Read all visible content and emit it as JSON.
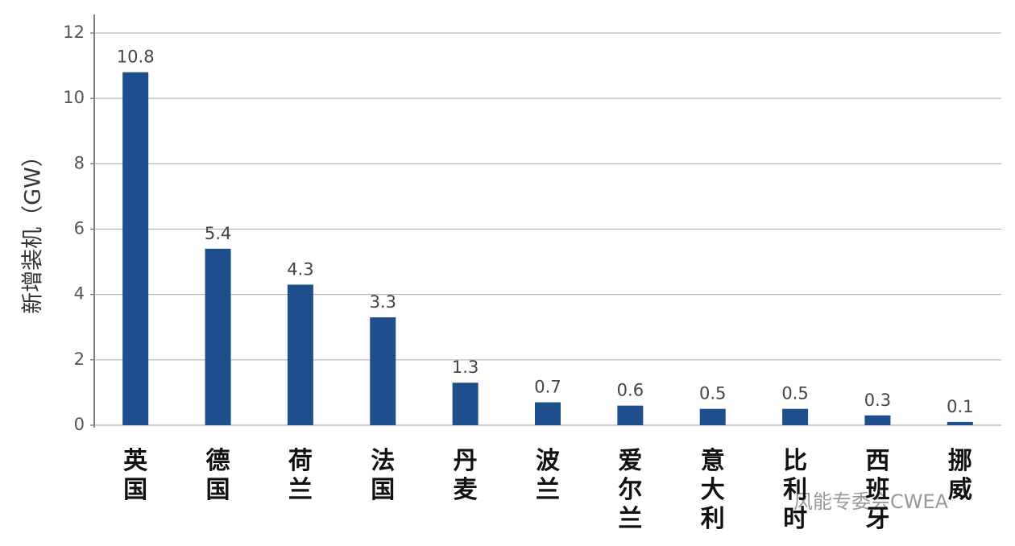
{
  "chart_data": {
    "type": "bar",
    "y_label": "新增装机（GW）",
    "categories": [
      "英国",
      "德国",
      "荷兰",
      "法国",
      "丹麦",
      "波兰",
      "爱尔兰",
      "意大利",
      "比利时",
      "西班牙",
      "挪威"
    ],
    "values": [
      10.8,
      5.4,
      4.3,
      3.3,
      1.3,
      0.7,
      0.6,
      0.5,
      0.5,
      0.3,
      0.1
    ],
    "color": "#1f4e8c",
    "ylim": [
      0,
      12
    ],
    "yticks": [
      0,
      2,
      4,
      6,
      8,
      10,
      12
    ],
    "grid": true,
    "annotation": "风能专委会CWEA"
  }
}
